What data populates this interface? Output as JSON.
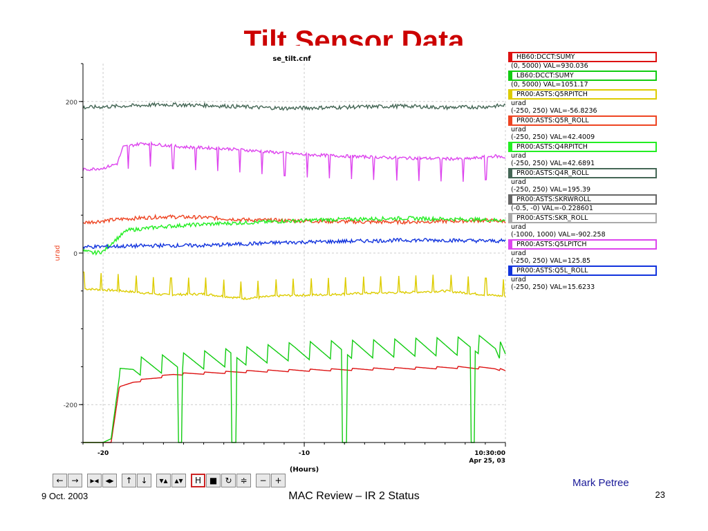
{
  "slide": {
    "title": "Tilt Sensor Data",
    "footer_date": "9 Oct. 2003",
    "footer_center": "MAC Review – IR 2 Status",
    "author": "Mark Petree",
    "page_number": "23"
  },
  "toolbar": {
    "buttons": [
      {
        "icon": "arrow-left-icon",
        "glyph": "←"
      },
      {
        "icon": "arrow-right-icon",
        "glyph": "→"
      },
      {
        "icon": "zoom-in-horizontal-icon",
        "glyph": "▸◂"
      },
      {
        "icon": "zoom-out-horizontal-icon",
        "glyph": "◂▸"
      },
      {
        "icon": "arrow-up-icon",
        "glyph": "↑"
      },
      {
        "icon": "arrow-down-icon",
        "glyph": "↓"
      },
      {
        "icon": "zoom-in-vertical-icon",
        "glyph": "▾▴"
      },
      {
        "icon": "zoom-out-vertical-icon",
        "glyph": "▴▾"
      },
      {
        "icon": "cursor-mode-icon",
        "glyph": "H"
      },
      {
        "icon": "stop-icon",
        "glyph": "■"
      },
      {
        "icon": "refresh-icon",
        "glyph": "↻"
      },
      {
        "icon": "autoscale-icon",
        "glyph": "≑"
      },
      {
        "icon": "remove-trace-icon",
        "glyph": "−"
      },
      {
        "icon": "add-trace-icon",
        "glyph": "+"
      }
    ]
  },
  "chart_data": {
    "type": "line",
    "title": "se_tilt.cnf",
    "xlabel": "(Hours)",
    "ylabel": "urad",
    "xlim": [
      -21,
      0
    ],
    "ylim": [
      -250,
      250
    ],
    "x_ticks": [
      "-20",
      "-10",
      "10:30:00",
      "Apr 25, 03"
    ],
    "y_ticks": [
      "200",
      "0",
      "-200"
    ],
    "grid": true,
    "legend_position": "right",
    "series": [
      {
        "name": "HB60:DCCT:SUMY",
        "color": "#dd1111",
        "range": "(0, 5000)",
        "value": "VAL=930.036",
        "unit": "",
        "style": "sawtooth",
        "x": [
          -21,
          -20.5,
          -20.0,
          -19.6,
          -19.2,
          -18.5,
          -16.5,
          -14.5,
          -12.5,
          -10.5,
          -8.5,
          -6.5,
          -4.5,
          -2.5,
          -0.5,
          0
        ],
        "y": [
          -250,
          -250,
          -250,
          -250,
          -178,
          -170,
          -160,
          -158,
          -156,
          -155,
          -154,
          -153,
          -152,
          -151,
          -152,
          -156
        ]
      },
      {
        "name": "LB60:DCCT:SUMY",
        "color": "#11cc11",
        "range": "(0, 5000)",
        "value": "VAL=1051.17",
        "unit": "",
        "style": "sawtooth",
        "x": [
          -21,
          -20.5,
          -20.0,
          -19.6,
          -19.2,
          -18.5,
          -16.5,
          -14.5,
          -12.5,
          -10.5,
          -8.5,
          -6.5,
          -4.5,
          -2.5,
          -0.5,
          0
        ],
        "y": [
          -250,
          -250,
          -250,
          -245,
          -165,
          -150,
          -145,
          -140,
          -135,
          -130,
          -128,
          -127,
          -125,
          -124,
          -120,
          -140
        ]
      },
      {
        "name": "PR00:ASTS:Q5RPITCH",
        "color": "#ddcc00",
        "range": "(-250, 250)",
        "value": "VAL=-56.8236",
        "unit": "urad",
        "style": "spiky",
        "x": [
          -21,
          -19,
          -17,
          -15,
          -13,
          -11,
          -9,
          -7,
          -5,
          -3,
          -1,
          0
        ],
        "y": [
          -47,
          -50,
          -55,
          -54,
          -60,
          -56,
          -55,
          -53,
          -52,
          -50,
          -55,
          -57
        ]
      },
      {
        "name": "PR00:ASTS:Q5R_ROLL",
        "color": "#ee4422",
        "range": "(-250, 250)",
        "value": "VAL=42.4009",
        "unit": "urad",
        "style": "noisy",
        "x": [
          -21,
          -19,
          -17,
          -15,
          -13,
          -11,
          -9,
          -7,
          -5,
          -3,
          -1,
          0
        ],
        "y": [
          40,
          45,
          48,
          47,
          44,
          43,
          42,
          41,
          41,
          42,
          43,
          42
        ]
      },
      {
        "name": "PR00:ASTS:Q4RPITCH",
        "color": "#22ee22",
        "range": "(-250, 250)",
        "value": "VAL=42.6891",
        "unit": "urad",
        "style": "noisy",
        "x": [
          -21,
          -20.5,
          -20.0,
          -19.5,
          -18.8,
          -17,
          -15,
          -13,
          -11,
          -9,
          -7,
          -5,
          -3,
          -1,
          0
        ],
        "y": [
          3,
          0,
          2,
          15,
          30,
          35,
          38,
          40,
          42,
          44,
          45,
          46,
          45,
          44,
          43
        ]
      },
      {
        "name": "PR00:ASTS:Q4R_ROLL",
        "color": "#446655",
        "range": "(-250, 250)",
        "value": "VAL=195.39",
        "unit": "urad",
        "style": "noisy",
        "x": [
          -21,
          -19,
          -17,
          -15,
          -13,
          -11,
          -9,
          -7,
          -5,
          -3,
          -1,
          0
        ],
        "y": [
          192,
          194,
          196,
          195,
          193,
          191,
          192,
          193,
          194,
          192,
          193,
          195
        ]
      },
      {
        "name": "PR00:ASTS:SKRWROLL",
        "color": "#666666",
        "range": "(-0.5, -0)",
        "value": "VAL=-0.228601",
        "unit": "",
        "style": "line",
        "x": [],
        "y": []
      },
      {
        "name": "PR00:ASTS:SKR_ROLL",
        "color": "#aaaaaa",
        "range": "(-1000, 1000)",
        "value": "VAL=-902.258",
        "unit": "urad",
        "style": "line",
        "x": [],
        "y": []
      },
      {
        "name": "PR00:ASTS:Q5LPITCH",
        "color": "#dd44ee",
        "range": "(-250, 250)",
        "value": "VAL=125.85",
        "unit": "urad",
        "style": "spiky-down",
        "x": [
          -21,
          -20,
          -19.3,
          -19.0,
          -18,
          -16,
          -14,
          -12,
          -10,
          -8,
          -6,
          -4,
          -2,
          -0.5,
          0
        ],
        "y": [
          110,
          112,
          118,
          140,
          145,
          140,
          138,
          134,
          130,
          128,
          126,
          125,
          124,
          128,
          126
        ]
      },
      {
        "name": "PR00:ASTS:Q5L_ROLL",
        "color": "#1133dd",
        "range": "(-250, 250)",
        "value": "VAL=15.6233",
        "unit": "urad",
        "style": "noisy",
        "x": [
          -21,
          -19,
          -17,
          -15,
          -13,
          -11,
          -9,
          -7,
          -5,
          -3,
          -1,
          0
        ],
        "y": [
          8,
          9,
          10,
          10,
          12,
          14,
          15,
          16,
          17,
          17,
          16,
          16
        ]
      }
    ]
  }
}
